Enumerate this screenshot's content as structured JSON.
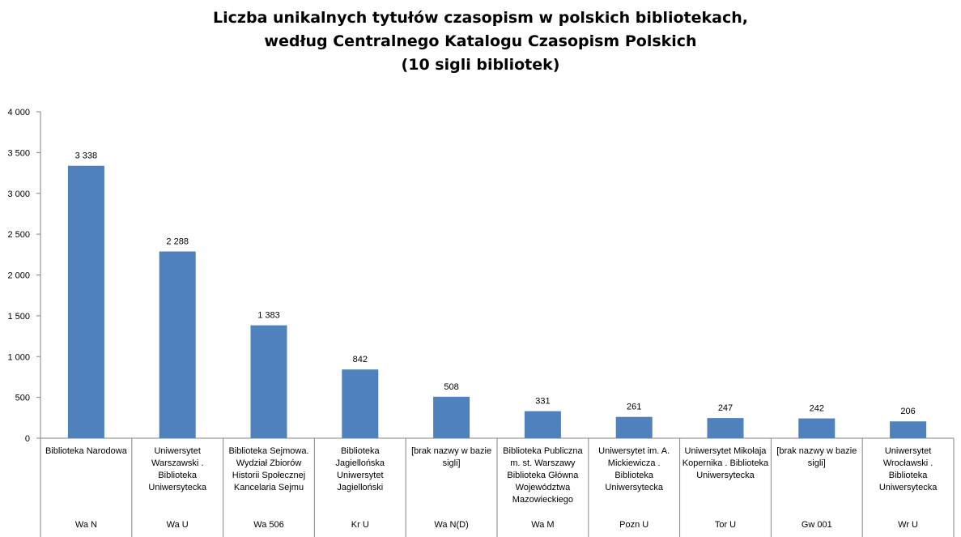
{
  "chart_data": {
    "type": "bar",
    "title": [
      "Liczba unikalnych tytułów  czasopism w polskich bibliotekach,",
      "według Centralnego Katalogu Czasopism Polskich",
      "(10 sigli bibliotek)"
    ],
    "categories": [
      "Biblioteka Narodowa",
      "Uniwersytet Warszawski . Biblioteka Uniwersytecka",
      "Biblioteka Sejmowa. Wydział Zbiorów Historii Społecznej Kancelaria Sejmu",
      "Biblioteka Jagiellońska Uniwersytet Jagielloński",
      "[brak nazwy w bazie sigli]",
      "Biblioteka Publiczna m. st. Warszawy Biblioteka Główna Województwa Mazowieckiego",
      "Uniwersytet im. A. Mickiewicza . Biblioteka Uniwersytecka",
      "Uniwersytet Mikołaja Kopernika . Biblioteka Uniwersytecka",
      "[brak nazwy w bazie sigli]",
      "Uniwersytet Wrocławski . Biblioteka Uniwersytecka"
    ],
    "codes": [
      "Wa N",
      "Wa U",
      "Wa 506",
      "Kr U",
      "Wa N(D)",
      "Wa M",
      "Pozn U",
      "Tor U",
      "Gw 001",
      "Wr U"
    ],
    "values": [
      3338,
      2288,
      1383,
      842,
      508,
      331,
      261,
      247,
      242,
      206
    ],
    "value_labels": [
      "3 338",
      "2 288",
      "1 383",
      "842",
      "508",
      "331",
      "261",
      "247",
      "242",
      "206"
    ],
    "y_ticks": [
      0,
      500,
      1000,
      1500,
      2000,
      2500,
      3000,
      3500,
      4000
    ],
    "y_tick_labels": [
      "0",
      "500",
      "1 000",
      "1 500",
      "2 000",
      "2 500",
      "3 000",
      "3 500",
      "4 000"
    ],
    "ylim": [
      0,
      4000
    ],
    "xlabel": "",
    "ylabel": "",
    "grid": false,
    "legend": "none",
    "colors": {
      "bar": "#4F81BD",
      "axis": "#868686"
    }
  }
}
